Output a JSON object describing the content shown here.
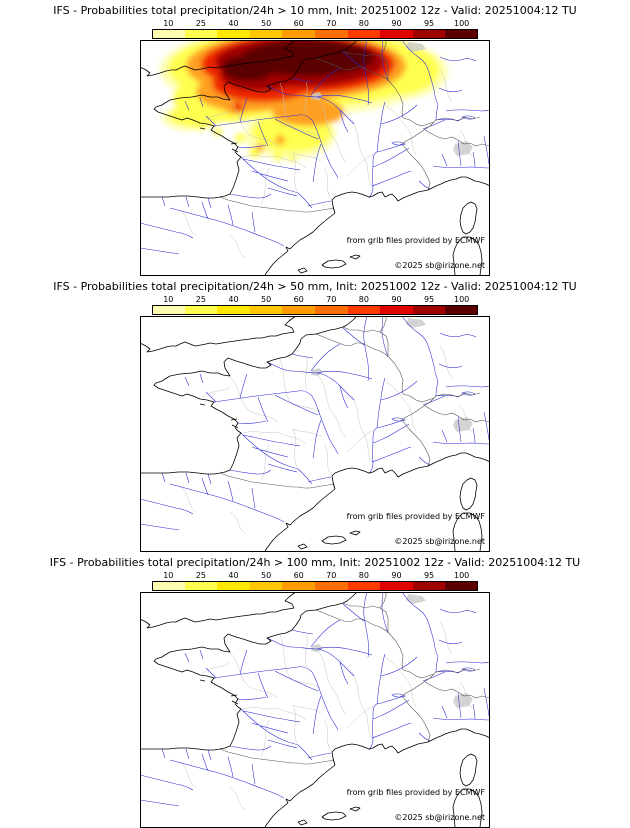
{
  "page": {
    "background": "#ffffff"
  },
  "colorbar": {
    "tick_labels": [
      "10",
      "25",
      "40",
      "50",
      "60",
      "70",
      "80",
      "90",
      "95",
      "100"
    ],
    "segment_colors": [
      "#ffffb4",
      "#ffff50",
      "#ffe800",
      "#ffc800",
      "#ff9c00",
      "#ff6e00",
      "#ff3c00",
      "#e00000",
      "#a00000",
      "#5a0000"
    ]
  },
  "map_colors": {
    "coastline": "#000000",
    "rivers": "#2929d6",
    "admin_boundaries": "#c4c4c4",
    "country_borders": "#555555"
  },
  "panels": [
    {
      "title": "IFS - Probabilities total precipitation/24h > 10 mm, Init: 20251002 12z - Valid: 20251004:12 TU",
      "threshold": "> 10 mm",
      "attribution": "from grib files provided by ECMWF",
      "copyright": "©2025 sb@irizone.net",
      "has_precip_shading": true
    },
    {
      "title": "IFS - Probabilities total precipitation/24h > 50 mm, Init: 20251002 12z - Valid: 20251004:12 TU",
      "threshold": "> 50 mm",
      "attribution": "from grib files provided by ECMWF",
      "copyright": "©2025 sb@irizone.net",
      "has_precip_shading": false
    },
    {
      "title": "IFS - Probabilities total precipitation/24h > 100 mm, Init: 20251002 12z - Valid: 20251004:12 TU",
      "threshold": "> 100 mm",
      "attribution": "from grib files provided by ECMWF",
      "copyright": "©2025 sb@irizone.net",
      "has_precip_shading": false
    }
  ]
}
